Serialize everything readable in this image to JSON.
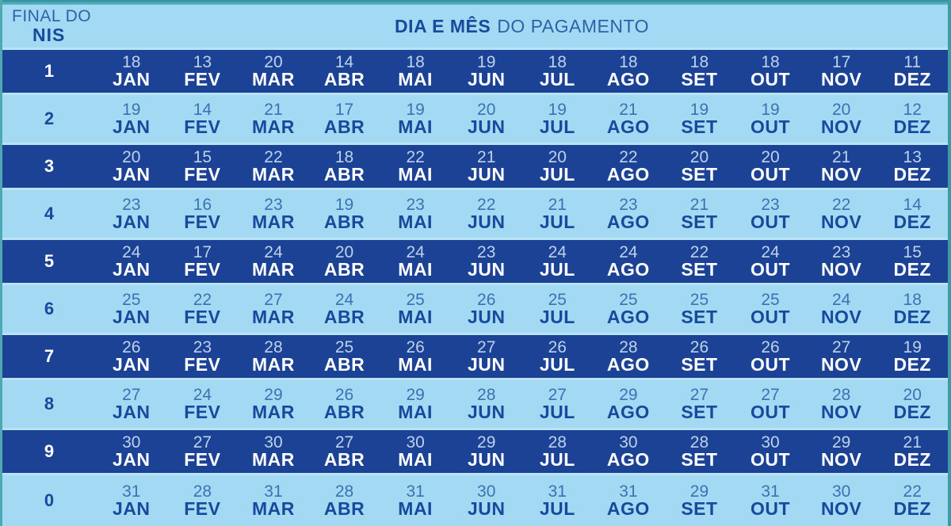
{
  "header": {
    "nis_label_line1": "FINAL DO",
    "nis_label_line2": "NIS",
    "title_bold": "DIA E MÊS",
    "title_rest": "DO PAGAMENTO"
  },
  "months": [
    "JAN",
    "FEV",
    "MAR",
    "ABR",
    "MAI",
    "JUN",
    "JUL",
    "AGO",
    "SET",
    "OUT",
    "NOV",
    "DEZ"
  ],
  "rows": [
    {
      "nis": "1",
      "days": [
        18,
        13,
        20,
        14,
        18,
        19,
        18,
        18,
        18,
        18,
        17,
        11
      ]
    },
    {
      "nis": "2",
      "days": [
        19,
        14,
        21,
        17,
        19,
        20,
        19,
        21,
        19,
        19,
        20,
        12
      ]
    },
    {
      "nis": "3",
      "days": [
        20,
        15,
        22,
        18,
        22,
        21,
        20,
        22,
        20,
        20,
        21,
        13
      ]
    },
    {
      "nis": "4",
      "days": [
        23,
        16,
        23,
        19,
        23,
        22,
        21,
        23,
        21,
        23,
        22,
        14
      ]
    },
    {
      "nis": "5",
      "days": [
        24,
        17,
        24,
        20,
        24,
        23,
        24,
        24,
        22,
        24,
        23,
        15
      ]
    },
    {
      "nis": "6",
      "days": [
        25,
        22,
        27,
        24,
        25,
        26,
        25,
        25,
        25,
        25,
        24,
        18
      ]
    },
    {
      "nis": "7",
      "days": [
        26,
        23,
        28,
        25,
        26,
        27,
        26,
        28,
        26,
        26,
        27,
        19
      ]
    },
    {
      "nis": "8",
      "days": [
        27,
        24,
        29,
        26,
        29,
        28,
        27,
        29,
        27,
        27,
        28,
        20
      ]
    },
    {
      "nis": "9",
      "days": [
        30,
        27,
        30,
        27,
        30,
        29,
        28,
        30,
        28,
        30,
        29,
        21
      ]
    },
    {
      "nis": "0",
      "days": [
        31,
        28,
        31,
        28,
        31,
        30,
        31,
        31,
        29,
        31,
        30,
        22
      ]
    }
  ],
  "colors": {
    "teal_accent": "#3c9ba6",
    "light_blue": "#a3d9f2",
    "separator_blue": "#b9e4f7",
    "navy_row": "#1c4296",
    "navy_text": "#17499c",
    "muted_blue_text": "#3a73b3",
    "white_text": "#ffffff"
  }
}
